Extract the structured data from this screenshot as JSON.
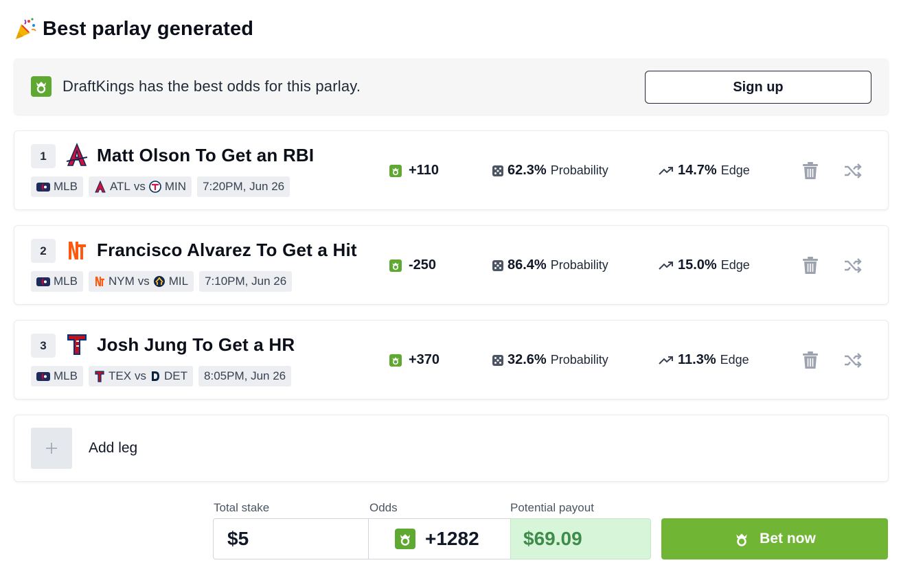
{
  "header": {
    "title": "Best parlay generated",
    "icon": "party-popper-icon"
  },
  "banner": {
    "text": "DraftKings has the best odds for this parlay.",
    "button_label": "Sign up",
    "brand_color": "#5fa832"
  },
  "legs": [
    {
      "number": "1",
      "team_logo": "braves-logo",
      "title": "Matt Olson To Get an RBI",
      "league": "MLB",
      "home": "ATL",
      "vs": "vs",
      "away": "MIN",
      "time": "7:20PM, Jun 26",
      "odds": "+110",
      "probability": "62.3%",
      "probability_label": "Probability",
      "edge": "14.7%",
      "edge_label": "Edge"
    },
    {
      "number": "2",
      "team_logo": "mets-logo",
      "title": "Francisco Alvarez To Get a Hit",
      "league": "MLB",
      "home": "NYM",
      "vs": "vs",
      "away": "MIL",
      "time": "7:10PM, Jun 26",
      "odds": "-250",
      "probability": "86.4%",
      "probability_label": "Probability",
      "edge": "15.0%",
      "edge_label": "Edge"
    },
    {
      "number": "3",
      "team_logo": "rangers-logo",
      "title": "Josh Jung To Get a HR",
      "league": "MLB",
      "home": "TEX",
      "vs": "vs",
      "away": "DET",
      "time": "8:05PM, Jun 26",
      "odds": "+370",
      "probability": "32.6%",
      "probability_label": "Probability",
      "edge": "11.3%",
      "edge_label": "Edge"
    }
  ],
  "add_leg": {
    "label": "Add leg",
    "icon": "plus-icon"
  },
  "footer": {
    "stake_label": "Total stake",
    "stake_value": "$5",
    "odds_label": "Odds",
    "odds_value": "+1282",
    "payout_label": "Potential payout",
    "payout_value": "$69.09",
    "bet_label": "Bet now",
    "bet_color": "#71b534",
    "payout_bg": "#d6f5d9"
  }
}
